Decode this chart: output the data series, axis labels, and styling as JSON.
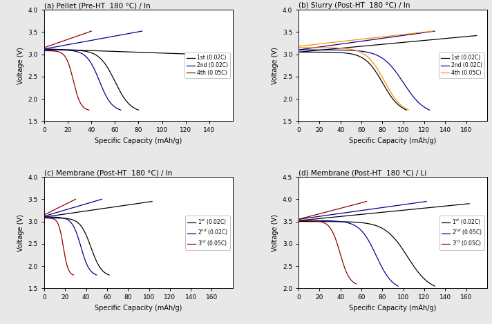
{
  "panels": [
    {
      "title": "(a) Pellet (Pre-HT  180 °C) / In",
      "ylim": [
        1.5,
        4.0
      ],
      "xlim": [
        0,
        160
      ],
      "xticks": [
        0,
        20,
        40,
        60,
        80,
        100,
        120,
        140
      ],
      "yticks": [
        1.5,
        2.0,
        2.5,
        3.0,
        3.5,
        4.0
      ],
      "legend": [
        "1st (0.02C)",
        "2nd (0.02C)",
        "4th (0.05C)"
      ],
      "colors": [
        "black",
        "#00008B",
        "#8B0000"
      ],
      "series": [
        {
          "ch_cap": 130,
          "ch_v0": 3.12,
          "ch_v1": 3.02,
          "ch_vtop": 3.0,
          "dis_cap": 80,
          "dis_v0": 3.1,
          "dis_v1": 1.75,
          "dis_knee": 0.75
        },
        {
          "ch_cap": 83,
          "ch_v0": 3.12,
          "ch_v1": 3.02,
          "ch_vtop": 3.52,
          "dis_cap": 65,
          "dis_v0": 3.1,
          "dis_v1": 1.75,
          "dis_knee": 0.72
        },
        {
          "ch_cap": 40,
          "ch_v0": 3.15,
          "ch_v1": 3.02,
          "ch_vtop": 3.52,
          "dis_cap": 38,
          "dis_v0": 3.08,
          "dis_v1": 1.75,
          "dis_knee": 0.65
        }
      ]
    },
    {
      "title": "(b) Slurry (Post-HT  180 °C) / In",
      "ylim": [
        1.5,
        4.0
      ],
      "xlim": [
        0,
        180
      ],
      "xticks": [
        0,
        20,
        40,
        60,
        80,
        100,
        120,
        140,
        160
      ],
      "yticks": [
        1.5,
        2.0,
        2.5,
        3.0,
        3.5,
        4.0
      ],
      "legend": [
        "1st (0.02C)",
        "2nd (0.02C)",
        "4th (0.05C)"
      ],
      "colors": [
        "black",
        "#00008B",
        "#FF8C00"
      ],
      "series": [
        {
          "ch_cap": 170,
          "ch_v0": 3.05,
          "ch_v1": 3.02,
          "ch_vtop": 3.42,
          "dis_cap": 103,
          "dis_v0": 3.05,
          "dis_v1": 1.75,
          "dis_knee": 0.78
        },
        {
          "ch_cap": 130,
          "ch_v0": 3.1,
          "ch_v1": 3.02,
          "ch_vtop": 3.52,
          "dis_cap": 125,
          "dis_v0": 3.1,
          "dis_v1": 1.75,
          "dis_knee": 0.8
        },
        {
          "ch_cap": 128,
          "ch_v0": 3.18,
          "ch_v1": 3.02,
          "ch_vtop": 3.52,
          "dis_cap": 105,
          "dis_v0": 3.15,
          "dis_v1": 1.75,
          "dis_knee": 0.78
        }
      ]
    },
    {
      "title": "(c) Membrane (Post-HT  180 °C) / In",
      "ylim": [
        1.5,
        4.0
      ],
      "xlim": [
        0,
        180
      ],
      "xticks": [
        0,
        20,
        40,
        60,
        80,
        100,
        120,
        140,
        160
      ],
      "yticks": [
        1.5,
        2.0,
        2.5,
        3.0,
        3.5,
        4.0
      ],
      "legend": [
        "1$^{st}$ (0.02C)",
        "2$^{nd}$ (0.02C)",
        "3$^{rd}$ (0.05C)"
      ],
      "colors": [
        "black",
        "#00008B",
        "#8B0000"
      ],
      "series": [
        {
          "ch_cap": 103,
          "ch_v0": 3.1,
          "ch_v1": 3.02,
          "ch_vtop": 3.45,
          "dis_cap": 62,
          "dis_v0": 3.08,
          "dis_v1": 1.8,
          "dis_knee": 0.72
        },
        {
          "ch_cap": 55,
          "ch_v0": 3.12,
          "ch_v1": 3.02,
          "ch_vtop": 3.5,
          "dis_cap": 50,
          "dis_v0": 3.1,
          "dis_v1": 1.8,
          "dis_knee": 0.7
        },
        {
          "ch_cap": 30,
          "ch_v0": 3.15,
          "ch_v1": 3.02,
          "ch_vtop": 3.5,
          "dis_cap": 28,
          "dis_v0": 3.08,
          "dis_v1": 1.8,
          "dis_knee": 0.65
        }
      ]
    },
    {
      "title": "(d) Membrane (Post-HT  180 °C) / Li",
      "ylim": [
        2.0,
        4.5
      ],
      "xlim": [
        0,
        180
      ],
      "xticks": [
        0,
        20,
        40,
        60,
        80,
        100,
        120,
        140,
        160
      ],
      "yticks": [
        2.0,
        2.5,
        3.0,
        3.5,
        4.0,
        4.5
      ],
      "legend": [
        "1$^{st}$ (0.02C)",
        "2$^{nd}$ (0.05C)",
        "3$^{rd}$ (0.05C)"
      ],
      "colors": [
        "black",
        "#00008B",
        "#8B0000"
      ],
      "series": [
        {
          "ch_cap": 163,
          "ch_v0": 3.52,
          "ch_v1": 3.5,
          "ch_vtop": 3.9,
          "dis_cap": 130,
          "dis_v0": 3.5,
          "dis_v1": 2.05,
          "dis_knee": 0.8
        },
        {
          "ch_cap": 122,
          "ch_v0": 3.55,
          "ch_v1": 3.5,
          "ch_vtop": 3.95,
          "dis_cap": 95,
          "dis_v0": 3.52,
          "dis_v1": 2.05,
          "dis_knee": 0.78
        },
        {
          "ch_cap": 65,
          "ch_v0": 3.55,
          "ch_v1": 3.5,
          "ch_vtop": 3.95,
          "dis_cap": 55,
          "dis_v0": 3.52,
          "dis_v1": 2.1,
          "dis_knee": 0.72
        }
      ]
    }
  ],
  "fig_bg": "#e8e8e8",
  "ax_bg": "white"
}
